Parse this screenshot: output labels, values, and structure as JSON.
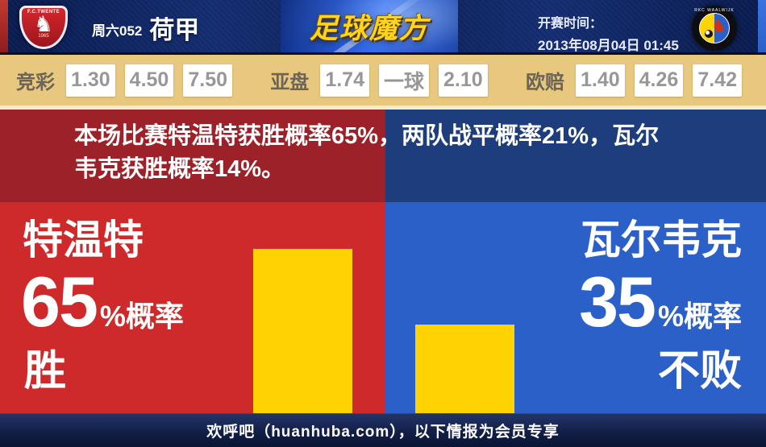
{
  "header": {
    "match_code": "周六052",
    "league": "荷甲",
    "site_logo": "足球魔方",
    "kickoff_label": "开赛时间：",
    "kickoff_datetime": "2013年08月04日 01:45",
    "home_logo_top_text": "F.C.TWENTE",
    "home_logo_year": "1965",
    "away_logo_ring_text": "RKC WAALWIJK"
  },
  "odds": {
    "groups": [
      {
        "label": "竞彩",
        "values": [
          "1.30",
          "4.50",
          "7.50"
        ]
      },
      {
        "label": "亚盘",
        "values": [
          "1.74",
          "一球",
          "2.10"
        ]
      },
      {
        "label": "欧赔",
        "values": [
          "1.40",
          "4.26",
          "7.42"
        ]
      }
    ]
  },
  "summary": {
    "lines": [
      "本场比赛特温特获胜概率65%，两队战平概率21%，瓦尔",
      "韦克获胜概率14%。"
    ]
  },
  "probabilities": {
    "home_win_pct": 65,
    "draw_pct": 21,
    "away_win_pct": 14,
    "away_unbeaten_pct": 35
  },
  "left_panel": {
    "team": "特温特",
    "value": "65",
    "suffix": "%概率",
    "outcome": "胜",
    "pct": 65
  },
  "right_panel": {
    "team": "瓦尔韦克",
    "value": "35",
    "suffix": "%概率",
    "outcome": "不败",
    "pct": 35
  },
  "footer": {
    "text": "欢呼吧（huanhuba.com），以下情报为会员专享"
  },
  "colors": {
    "bright_red": "#ce2a2b",
    "dark_red": "#9c2128",
    "bright_blue": "#2b60c9",
    "dark_blue": "#1e3d7d",
    "bar_yellow": "#fed203",
    "odds_bg": "#e8c87e",
    "header_navy": "#0d2057",
    "logo_gold": "#ffd41c"
  }
}
